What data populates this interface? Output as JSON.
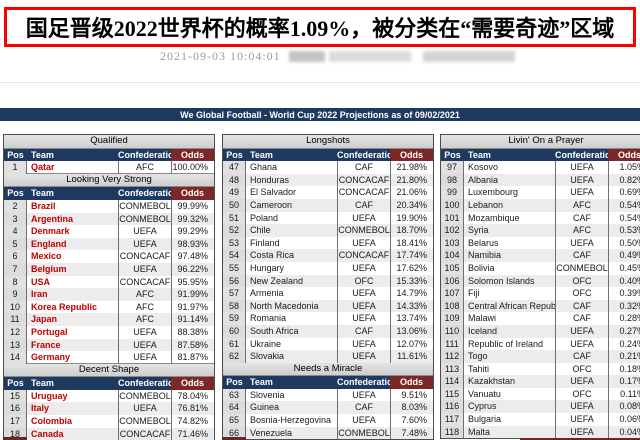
{
  "headline": {
    "text": "国足晋级2022世界杯的概率1.09%，被分类在“需要奇迹”区域",
    "border_color": "#fe0000"
  },
  "meta": {
    "timestamp": "2021-09-03 10:04:01"
  },
  "colors": {
    "header_navy": "#1f3a60",
    "odds_header_red": "#7d2828",
    "team_name_red": "#c00000",
    "section_band_gray": "#d9d9d9"
  },
  "table": {
    "title": "We Global Football - World Cup 2022 Projections as of 09/02/2021",
    "columns": [
      "Pos",
      "Team",
      "Confederation",
      "Odds"
    ],
    "panels": [
      {
        "team_style": "red",
        "sections": [
          {
            "name": "Qualified",
            "rows": [
              [
                "1",
                "Qatar",
                "AFC",
                "100.00%"
              ]
            ]
          },
          {
            "name": "Looking Very Strong",
            "rows": [
              [
                "2",
                "Brazil",
                "CONMEBOL",
                "99.99%"
              ],
              [
                "3",
                "Argentina",
                "CONMEBOL",
                "99.32%"
              ],
              [
                "4",
                "Denmark",
                "UEFA",
                "99.29%"
              ],
              [
                "5",
                "England",
                "UEFA",
                "98.93%"
              ],
              [
                "6",
                "Mexico",
                "CONCACAF",
                "97.48%"
              ],
              [
                "7",
                "Belgium",
                "UEFA",
                "96.22%"
              ],
              [
                "8",
                "USA",
                "CONCACAF",
                "95.95%"
              ],
              [
                "9",
                "Iran",
                "AFC",
                "91.99%"
              ],
              [
                "10",
                "Korea Republic",
                "AFC",
                "91.97%"
              ],
              [
                "11",
                "Japan",
                "AFC",
                "91.14%"
              ],
              [
                "12",
                "Portugal",
                "UEFA",
                "88.38%"
              ],
              [
                "13",
                "France",
                "UEFA",
                "87.58%"
              ],
              [
                "14",
                "Germany",
                "UEFA",
                "81.87%"
              ]
            ]
          },
          {
            "name": "Decent Shape",
            "rows": [
              [
                "15",
                "Uruguay",
                "CONMEBOL",
                "78.04%"
              ],
              [
                "16",
                "Italy",
                "UEFA",
                "76.81%"
              ],
              [
                "17",
                "Colombia",
                "CONMEBOL",
                "74.82%"
              ],
              [
                "18",
                "Canada",
                "CONCACAF",
                "71.46%"
              ]
            ]
          }
        ]
      },
      {
        "team_style": "plain",
        "sections": [
          {
            "name": "Longshots",
            "rows": [
              [
                "47",
                "Ghana",
                "CAF",
                "21.98%"
              ],
              [
                "48",
                "Honduras",
                "CONCACAF",
                "21.80%"
              ],
              [
                "49",
                "El Salvador",
                "CONCACAF",
                "21.06%"
              ],
              [
                "50",
                "Cameroon",
                "CAF",
                "20.34%"
              ],
              [
                "51",
                "Poland",
                "UEFA",
                "19.90%"
              ],
              [
                "52",
                "Chile",
                "CONMEBOL",
                "18.70%"
              ],
              [
                "53",
                "Finland",
                "UEFA",
                "18.41%"
              ],
              [
                "54",
                "Costa Rica",
                "CONCACAF",
                "17.74%"
              ],
              [
                "55",
                "Hungary",
                "UEFA",
                "17.62%"
              ],
              [
                "56",
                "New Zealand",
                "OFC",
                "15.33%"
              ],
              [
                "57",
                "Armenia",
                "UEFA",
                "14.79%"
              ],
              [
                "58",
                "North Macedonia",
                "UEFA",
                "14.33%"
              ],
              [
                "59",
                "Romania",
                "UEFA",
                "13.74%"
              ],
              [
                "60",
                "South Africa",
                "CAF",
                "13.06%"
              ],
              [
                "61",
                "Ukraine",
                "UEFA",
                "12.07%"
              ],
              [
                "62",
                "Slovakia",
                "UEFA",
                "11.61%"
              ]
            ]
          },
          {
            "name": "Needs a Miracle",
            "rows": [
              [
                "63",
                "Slovenia",
                "UEFA",
                "9.51%"
              ],
              [
                "64",
                "Guinea",
                "CAF",
                "8.03%"
              ],
              [
                "65",
                "Bosnia-Herzegovina",
                "UEFA",
                "7.60%"
              ],
              [
                "66",
                "Venezuela",
                "CONMEBOL",
                "7.48%"
              ]
            ]
          }
        ]
      },
      {
        "team_style": "plain",
        "sections": [
          {
            "name": "Livin' On a Prayer",
            "rows": [
              [
                "97",
                "Kosovo",
                "UEFA",
                "1.05%"
              ],
              [
                "98",
                "Albania",
                "UEFA",
                "0.82%"
              ],
              [
                "99",
                "Luxembourg",
                "UEFA",
                "0.69%"
              ],
              [
                "100",
                "Lebanon",
                "AFC",
                "0.54%"
              ],
              [
                "101",
                "Mozambique",
                "CAF",
                "0.54%"
              ],
              [
                "102",
                "Syria",
                "AFC",
                "0.53%"
              ],
              [
                "103",
                "Belarus",
                "UEFA",
                "0.50%"
              ],
              [
                "104",
                "Namibia",
                "CAF",
                "0.49%"
              ],
              [
                "105",
                "Bolivia",
                "CONMEBOL",
                "0.45%"
              ],
              [
                "106",
                "Solomon Islands",
                "OFC",
                "0.40%"
              ],
              [
                "107",
                "Fiji",
                "OFC",
                "0.39%"
              ],
              [
                "108",
                "Central African Republic",
                "CAF",
                "0.32%"
              ],
              [
                "109",
                "Malawi",
                "CAF",
                "0.28%"
              ],
              [
                "110",
                "Iceland",
                "UEFA",
                "0.27%"
              ],
              [
                "111",
                "Republic of Ireland",
                "UEFA",
                "0.24%"
              ],
              [
                "112",
                "Togo",
                "CAF",
                "0.21%"
              ],
              [
                "113",
                "Tahiti",
                "OFC",
                "0.18%"
              ],
              [
                "114",
                "Kazakhstan",
                "UEFA",
                "0.17%"
              ],
              [
                "115",
                "Vanuatu",
                "OFC",
                "0.11%"
              ],
              [
                "116",
                "Cyprus",
                "UEFA",
                "0.08%"
              ],
              [
                "117",
                "Bulgaria",
                "UEFA",
                "0.06%"
              ],
              [
                "118",
                "Malta",
                "UEFA",
                "0.04%"
              ]
            ]
          }
        ]
      }
    ]
  }
}
